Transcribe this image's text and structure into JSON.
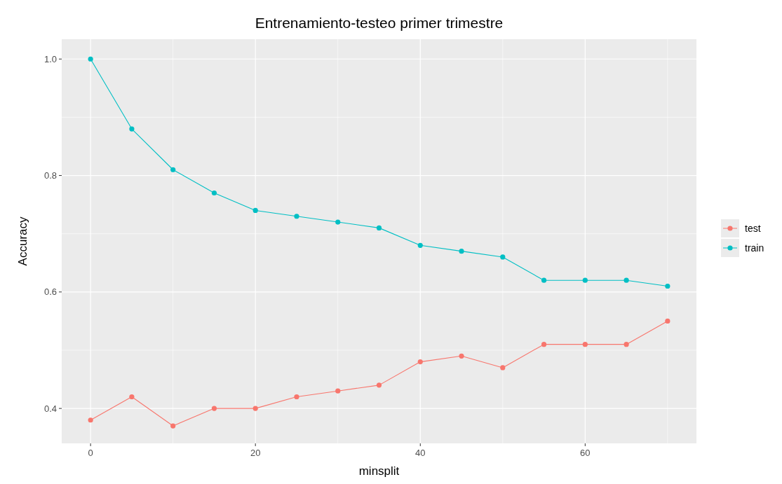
{
  "chart_data": {
    "type": "line",
    "title": "Entrenamiento-testeo primer trimestre",
    "xlabel": "minsplit",
    "ylabel": "Accuracy",
    "x": [
      0,
      5,
      10,
      15,
      20,
      25,
      30,
      35,
      40,
      45,
      50,
      55,
      60,
      65,
      70
    ],
    "series": [
      {
        "name": "test",
        "color": "#f8766d",
        "values": [
          0.38,
          0.42,
          0.37,
          0.4,
          0.4,
          0.42,
          0.43,
          0.44,
          0.48,
          0.49,
          0.47,
          0.51,
          0.51,
          0.51,
          0.55
        ]
      },
      {
        "name": "train",
        "color": "#00bfc4",
        "values": [
          1.0,
          0.88,
          0.81,
          0.77,
          0.74,
          0.73,
          0.72,
          0.71,
          0.68,
          0.67,
          0.66,
          0.62,
          0.62,
          0.62,
          0.61
        ]
      }
    ],
    "xlim": [
      -3.5,
      73.5
    ],
    "ylim": [
      0.34,
      1.034
    ],
    "xticks": [
      0,
      {
        "value": 10,
        "label": null
      },
      20,
      {
        "value": 30,
        "label": null
      },
      40,
      {
        "value": 50,
        "label": null
      },
      60,
      {
        "value": 70,
        "label": null
      }
    ],
    "yticks": [
      0.4,
      {
        "value": 0.5,
        "label": null
      },
      {
        "value": 0.6,
        "label": "0.6"
      },
      {
        "value": 0.7,
        "label": null
      },
      0.8,
      {
        "value": 0.9,
        "label": null
      },
      {
        "value": 1.0,
        "label": "1.0"
      }
    ],
    "grid": true,
    "legend": "right",
    "marker": "circle",
    "line_style": "solid"
  }
}
